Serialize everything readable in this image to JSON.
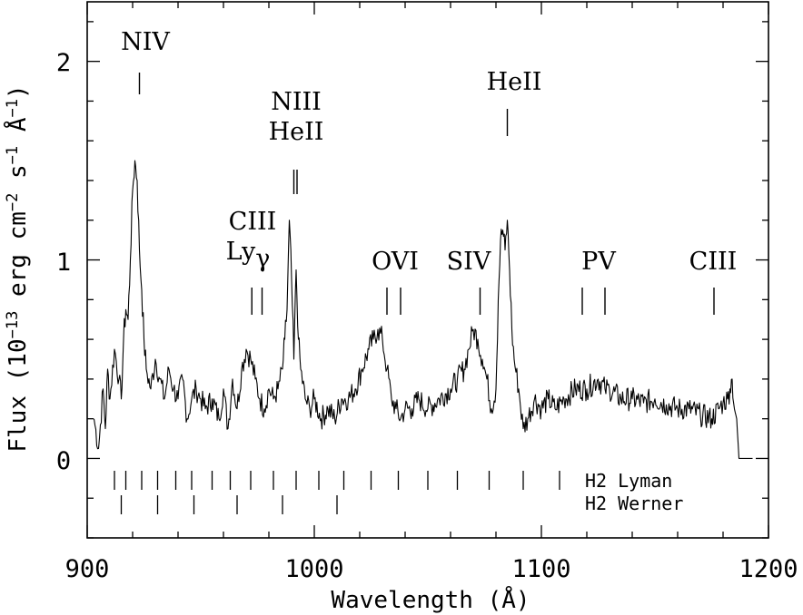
{
  "chart_data": {
    "type": "line",
    "title": "",
    "xlabel": "Wavelength (Å)",
    "ylabel": {
      "prefix": "Flux (10",
      "exp1": "−13",
      "mid1": " erg cm",
      "exp2": "−2",
      "mid2": " s",
      "exp3": "−1",
      "mid3": " Å",
      "exp4": "−1",
      "suffix": ")"
    },
    "xlim": [
      900,
      1200
    ],
    "ylim": [
      -0.4,
      2.3
    ],
    "xticks": [
      900,
      1000,
      1100,
      1200
    ],
    "yticks": [
      0,
      1,
      2
    ],
    "xtick_labels": [
      "900",
      "1000",
      "1100",
      "1200"
    ],
    "ytick_labels": [
      "0",
      "1",
      "2"
    ],
    "grid": false,
    "color": "#000000",
    "series": [
      {
        "x": [
          903,
          905,
          907,
          908,
          909,
          910,
          912,
          914,
          915,
          916,
          917,
          918,
          919,
          920,
          921,
          922,
          923,
          924,
          925,
          926,
          928,
          930,
          932,
          934,
          936,
          938,
          940,
          942,
          944,
          946,
          948,
          950,
          952,
          955,
          958,
          960,
          962,
          964,
          966,
          968,
          970,
          972,
          974,
          976,
          978,
          980,
          982,
          984,
          986,
          987,
          988,
          989,
          990,
          991,
          992,
          993,
          994,
          996,
          998,
          1000,
          1003,
          1006,
          1009,
          1012,
          1015,
          1018,
          1021,
          1024,
          1026,
          1028,
          1030,
          1032,
          1034,
          1036,
          1038,
          1040,
          1043,
          1046,
          1050,
          1055,
          1060,
          1063,
          1066,
          1068,
          1070,
          1072,
          1074,
          1076,
          1078,
          1080,
          1081,
          1082,
          1083,
          1084,
          1085,
          1086,
          1087,
          1088,
          1090,
          1092,
          1094,
          1097,
          1100,
          1103,
          1106,
          1110,
          1115,
          1120,
          1125,
          1128,
          1130,
          1135,
          1140,
          1145,
          1150,
          1155,
          1160,
          1165,
          1170,
          1175,
          1178,
          1180,
          1182,
          1183,
          1184,
          1185,
          1186,
          1187
        ],
        "y": [
          0.2,
          0.05,
          0.35,
          0.15,
          0.45,
          0.3,
          0.55,
          0.4,
          0.3,
          0.6,
          0.75,
          0.7,
          1.0,
          1.35,
          1.5,
          1.4,
          1.05,
          0.85,
          0.6,
          0.45,
          0.35,
          0.5,
          0.4,
          0.3,
          0.45,
          0.35,
          0.3,
          0.4,
          0.2,
          0.3,
          0.35,
          0.3,
          0.25,
          0.3,
          0.2,
          0.35,
          0.15,
          0.4,
          0.25,
          0.45,
          0.55,
          0.5,
          0.4,
          0.3,
          0.25,
          0.35,
          0.3,
          0.35,
          0.45,
          0.6,
          0.75,
          1.2,
          0.9,
          0.5,
          0.95,
          0.6,
          0.45,
          0.3,
          0.25,
          0.3,
          0.2,
          0.25,
          0.2,
          0.3,
          0.3,
          0.35,
          0.45,
          0.55,
          0.6,
          0.65,
          0.6,
          0.45,
          0.3,
          0.25,
          0.2,
          0.25,
          0.25,
          0.3,
          0.25,
          0.3,
          0.35,
          0.4,
          0.45,
          0.55,
          0.65,
          0.6,
          0.5,
          0.4,
          0.25,
          0.35,
          0.8,
          1.1,
          1.15,
          1.05,
          1.2,
          0.95,
          0.65,
          0.5,
          0.35,
          0.15,
          0.2,
          0.3,
          0.25,
          0.3,
          0.25,
          0.3,
          0.35,
          0.35,
          0.4,
          0.35,
          0.35,
          0.3,
          0.3,
          0.28,
          0.3,
          0.27,
          0.25,
          0.25,
          0.22,
          0.2,
          0.25,
          0.28,
          0.3,
          0.35,
          0.4,
          0.25,
          0.2,
          0.0
        ]
      }
    ],
    "line_ids": [
      {
        "label": "NIV",
        "x": [
          923
        ]
      },
      {
        "label_lines": [
          "NIII",
          "HeII"
        ],
        "x": [
          991.0,
          992.4
        ]
      },
      {
        "label_lines": [
          "CIII",
          "Ly"
        ],
        "label_suffix": "γ",
        "x": [
          972.5,
          977.0
        ]
      },
      {
        "label": "OVI",
        "x": [
          1032,
          1038
        ]
      },
      {
        "label": "SIV",
        "x": [
          1073
        ]
      },
      {
        "label": "HeII",
        "x": [
          1085
        ]
      },
      {
        "label": "PV",
        "x": [
          1118,
          1128
        ]
      },
      {
        "label": "CIII",
        "x": [
          1176
        ]
      }
    ],
    "h2_legend": {
      "lyman_label": "H2  Lyman",
      "werner_label": "H2  Werner",
      "lyman_x": [
        912,
        917,
        924,
        931,
        939,
        946,
        955,
        963,
        972,
        982,
        992,
        1002,
        1013,
        1025,
        1037,
        1050,
        1063,
        1077,
        1092,
        1108
      ],
      "werner_x": [
        915,
        931,
        947,
        966,
        986,
        1010
      ]
    }
  }
}
